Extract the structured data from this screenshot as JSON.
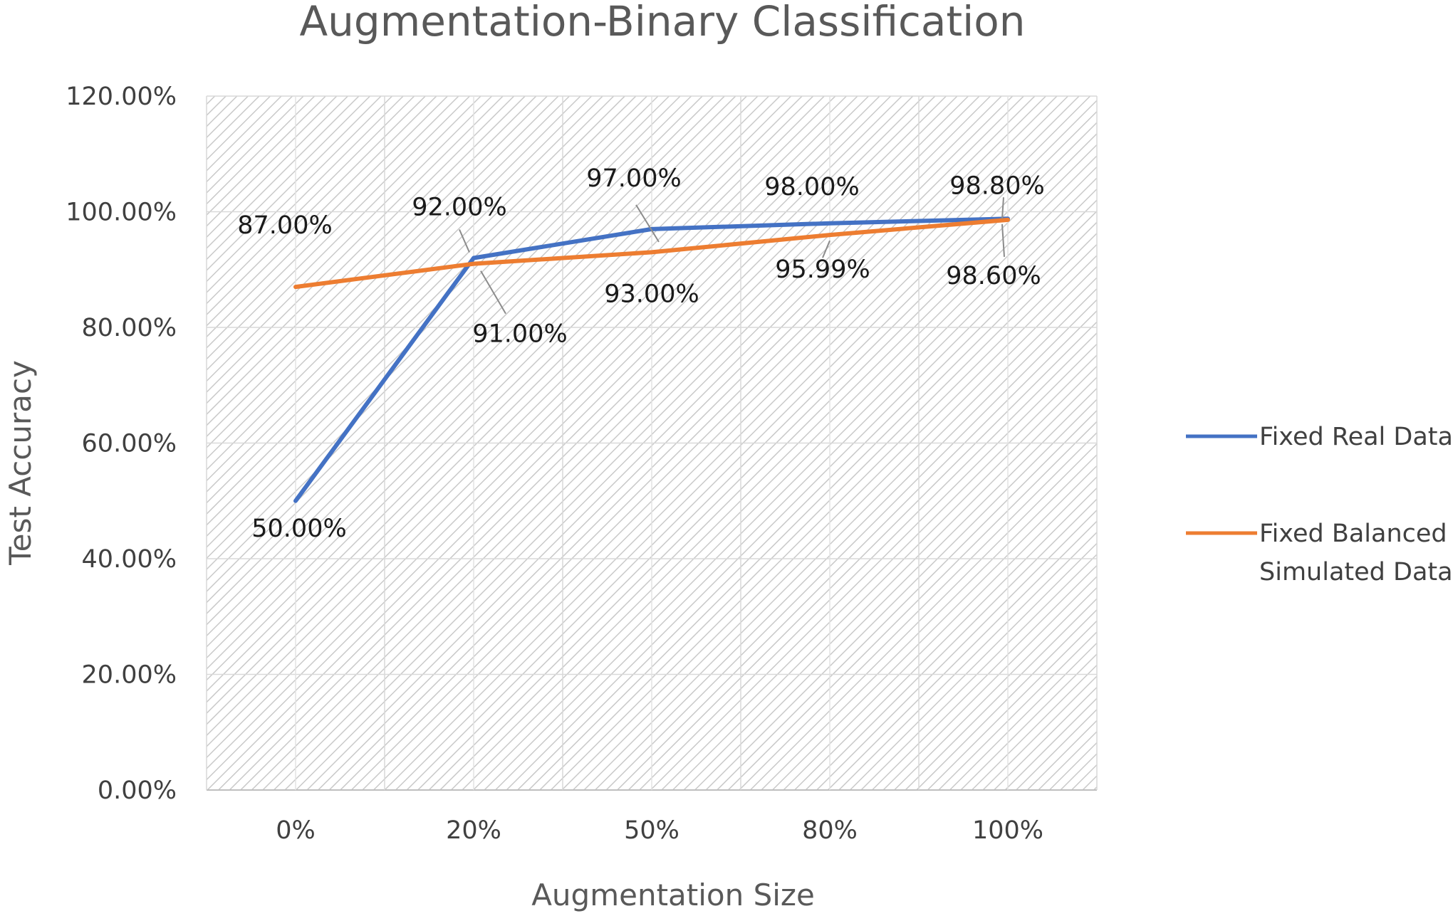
{
  "chart_data": {
    "type": "line",
    "title": "Augmentation-Binary Classification",
    "xlabel": "Augmentation Size",
    "ylabel": "Test Accuracy",
    "categories": [
      "0%",
      "20%",
      "50%",
      "80%",
      "100%"
    ],
    "y_ticks": [
      "0.00%",
      "20.00%",
      "40.00%",
      "60.00%",
      "80.00%",
      "100.00%",
      "120.00%"
    ],
    "ylim": [
      0,
      120
    ],
    "grid": true,
    "legend_position": "right",
    "series": [
      {
        "name": "Fixed Real Data",
        "color": "#4472C4",
        "values": [
          50.0,
          92.0,
          97.0,
          98.0,
          98.8
        ],
        "labels": [
          "50.00%",
          "92.00%",
          "97.00%",
          "98.00%",
          "98.80%"
        ]
      },
      {
        "name": "Fixed Balanced Simulated Data",
        "legend_lines": [
          "Fixed Balanced",
          "Simulated Data"
        ],
        "color": "#ED7D31",
        "values": [
          87.0,
          91.0,
          93.0,
          95.99,
          98.6
        ],
        "labels": [
          "87.00%",
          "91.00%",
          "93.00%",
          "95.99%",
          "98.60%"
        ]
      }
    ]
  }
}
